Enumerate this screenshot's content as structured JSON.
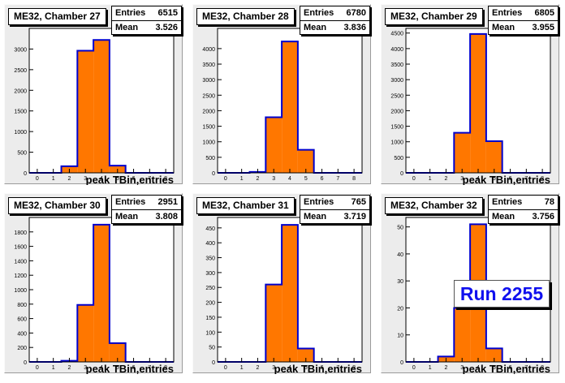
{
  "style": {
    "bar_fill": "#ff7700",
    "bar_stroke": "#0000cc",
    "pad_bg": "#ececec"
  },
  "run_label": "Run 2255",
  "chart_data": [
    {
      "type": "bar",
      "title": "ME32, Chamber 27",
      "xlabel": "peak TBin,entries",
      "stats": {
        "entries_label": "Entries",
        "entries": "6515",
        "mean_label": "Mean",
        "mean": "3.526"
      },
      "xlim": [
        -0.5,
        8.5
      ],
      "xticks": [
        0,
        1,
        2,
        3,
        4,
        5,
        6,
        7,
        8
      ],
      "ylim": [
        0,
        3500
      ],
      "yticks": [
        0,
        500,
        1000,
        1500,
        2000,
        2500,
        3000
      ],
      "bins": [
        0,
        1,
        2,
        3,
        4,
        5,
        6,
        7,
        8
      ],
      "values": [
        0,
        0,
        160,
        2960,
        3220,
        175,
        0,
        0,
        0
      ]
    },
    {
      "type": "bar",
      "title": "ME32, Chamber 28",
      "xlabel": "",
      "stats": {
        "entries_label": "Entries",
        "entries": "6780",
        "mean_label": "Mean",
        "mean": "3.836"
      },
      "xlim": [
        -0.5,
        8.5
      ],
      "xticks": [
        0,
        1,
        2,
        3,
        4,
        5,
        6,
        7,
        8
      ],
      "ylim": [
        0,
        4650
      ],
      "yticks": [
        0,
        500,
        1000,
        1500,
        2000,
        2500,
        3000,
        3500,
        4000
      ],
      "bins": [
        0,
        1,
        2,
        3,
        4,
        5,
        6,
        7,
        8
      ],
      "values": [
        0,
        0,
        30,
        1790,
        4230,
        740,
        0,
        0,
        0
      ]
    },
    {
      "type": "bar",
      "title": "ME32, Chamber 29",
      "xlabel": "peak TBin,entries",
      "stats": {
        "entries_label": "Entries",
        "entries": "6805",
        "mean_label": "Mean",
        "mean": "3.955"
      },
      "xlim": [
        -0.5,
        8.5
      ],
      "xticks": [
        0,
        1,
        2,
        3,
        4,
        5,
        6,
        7,
        8
      ],
      "ylim": [
        0,
        4650
      ],
      "yticks": [
        0,
        500,
        1000,
        1500,
        2000,
        2500,
        3000,
        3500,
        4000,
        4500
      ],
      "bins": [
        0,
        1,
        2,
        3,
        4,
        5,
        6,
        7,
        8
      ],
      "values": [
        0,
        0,
        0,
        1290,
        4470,
        1020,
        0,
        0,
        0
      ]
    },
    {
      "type": "bar",
      "title": "ME32, Chamber 30",
      "xlabel": "peak TBin,entries",
      "stats": {
        "entries_label": "Entries",
        "entries": "2951",
        "mean_label": "Mean",
        "mean": "3.808"
      },
      "xlim": [
        -0.5,
        8.5
      ],
      "xticks": [
        0,
        1,
        2,
        3,
        4,
        5,
        6,
        7,
        8
      ],
      "ylim": [
        0,
        2000
      ],
      "yticks": [
        0,
        200,
        400,
        600,
        800,
        1000,
        1200,
        1400,
        1600,
        1800
      ],
      "bins": [
        0,
        1,
        2,
        3,
        4,
        5,
        6,
        7,
        8
      ],
      "values": [
        0,
        0,
        15,
        790,
        1900,
        260,
        0,
        0,
        0
      ]
    },
    {
      "type": "bar",
      "title": "ME32, Chamber 31",
      "xlabel": "peak TBin,entries",
      "stats": {
        "entries_label": "Entries",
        "entries": "765",
        "mean_label": "Mean",
        "mean": "3.719"
      },
      "xlim": [
        -0.5,
        8.5
      ],
      "xticks": [
        0,
        1,
        2,
        3,
        4,
        5,
        6,
        7,
        8
      ],
      "ylim": [
        0,
        485
      ],
      "yticks": [
        0,
        50,
        100,
        150,
        200,
        250,
        300,
        350,
        400,
        450
      ],
      "bins": [
        0,
        1,
        2,
        3,
        4,
        5,
        6,
        7,
        8
      ],
      "values": [
        0,
        0,
        0,
        260,
        460,
        45,
        0,
        0,
        0
      ]
    },
    {
      "type": "bar",
      "title": "ME32, Chamber 32",
      "xlabel": "peak TBin,entries",
      "stats": {
        "entries_label": "Entries",
        "entries": "78",
        "mean_label": "Mean",
        "mean": "3.756"
      },
      "xlim": [
        -0.5,
        8.5
      ],
      "xticks": [
        0,
        1,
        2,
        3,
        4,
        5,
        6,
        7,
        8
      ],
      "ylim": [
        0,
        53.5
      ],
      "yticks": [
        0,
        10,
        20,
        30,
        40,
        50
      ],
      "bins": [
        0,
        1,
        2,
        3,
        4,
        5,
        6,
        7,
        8
      ],
      "values": [
        0,
        0,
        2,
        20,
        51,
        5,
        0,
        0,
        0
      ]
    }
  ]
}
